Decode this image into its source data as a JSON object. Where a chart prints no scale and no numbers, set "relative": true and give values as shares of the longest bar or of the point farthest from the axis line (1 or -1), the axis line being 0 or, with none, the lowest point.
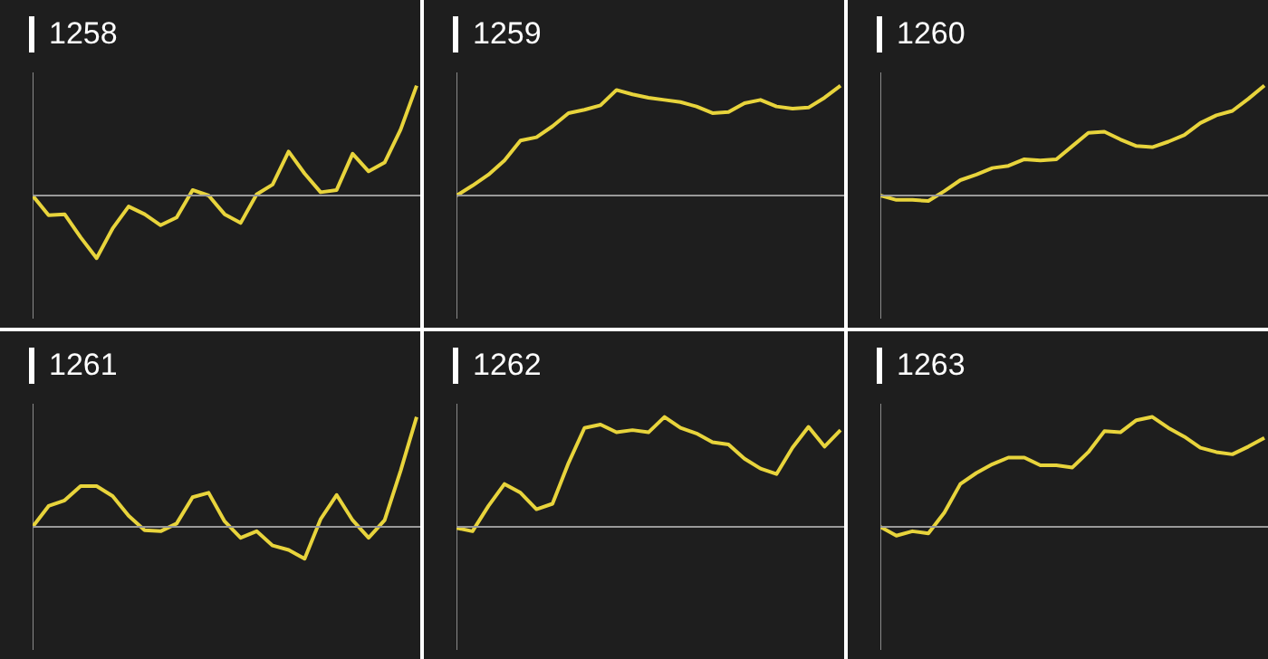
{
  "chart_data": [
    {
      "type": "line",
      "title": "1258",
      "relative": true,
      "categories": [
        null,
        null,
        null,
        null,
        null,
        null,
        null,
        null,
        null,
        null,
        null,
        null,
        null,
        null,
        null,
        null,
        null,
        null,
        null,
        null,
        null,
        null,
        null,
        null,
        null
      ],
      "series": [
        {
          "color": "#e8d43c",
          "values": [
            0,
            -0.18,
            -0.17,
            -0.38,
            -0.57,
            -0.3,
            -0.1,
            -0.17,
            -0.27,
            -0.2,
            0.05,
            0.0,
            -0.17,
            -0.25,
            0.01,
            0.1,
            0.4,
            0.2,
            0.03,
            0.05,
            0.38,
            0.22,
            0.3,
            0.6,
            1
          ]
        }
      ]
    },
    {
      "type": "line",
      "title": "1259",
      "relative": true,
      "categories": [
        null,
        null,
        null,
        null,
        null,
        null,
        null,
        null,
        null,
        null,
        null,
        null,
        null,
        null,
        null,
        null,
        null,
        null,
        null,
        null,
        null,
        null,
        null,
        null,
        null
      ],
      "series": [
        {
          "color": "#e8d43c",
          "values": [
            0,
            0.09,
            0.19,
            0.32,
            0.5,
            0.53,
            0.63,
            0.75,
            0.78,
            0.82,
            0.96,
            0.92,
            0.89,
            0.87,
            0.85,
            0.81,
            0.75,
            0.76,
            0.84,
            0.87,
            0.81,
            0.79,
            0.8,
            0.89,
            1
          ]
        }
      ]
    },
    {
      "type": "line",
      "title": "1260",
      "relative": true,
      "categories": [
        null,
        null,
        null,
        null,
        null,
        null,
        null,
        null,
        null,
        null,
        null,
        null,
        null,
        null,
        null,
        null,
        null,
        null,
        null,
        null,
        null,
        null,
        null,
        null,
        null
      ],
      "series": [
        {
          "color": "#e8d43c",
          "values": [
            0,
            -0.04,
            -0.04,
            -0.05,
            0.04,
            0.14,
            0.19,
            0.25,
            0.27,
            0.33,
            0.32,
            0.33,
            0.45,
            0.57,
            0.58,
            0.51,
            0.45,
            0.44,
            0.49,
            0.55,
            0.66,
            0.73,
            0.77,
            0.88,
            1
          ]
        }
      ]
    },
    {
      "type": "line",
      "title": "1261",
      "relative": true,
      "categories": [
        null,
        null,
        null,
        null,
        null,
        null,
        null,
        null,
        null,
        null,
        null,
        null,
        null,
        null,
        null,
        null,
        null,
        null,
        null,
        null,
        null,
        null,
        null,
        null,
        null
      ],
      "series": [
        {
          "color": "#e8d43c",
          "values": [
            0,
            0.19,
            0.24,
            0.37,
            0.37,
            0.28,
            0.1,
            -0.03,
            -0.04,
            0.03,
            0.27,
            0.31,
            0.05,
            -0.1,
            -0.04,
            -0.17,
            -0.21,
            -0.29,
            0.07,
            0.29,
            0.06,
            -0.1,
            0.06,
            0.51,
            1
          ]
        }
      ]
    },
    {
      "type": "line",
      "title": "1262",
      "relative": true,
      "categories": [
        null,
        null,
        null,
        null,
        null,
        null,
        null,
        null,
        null,
        null,
        null,
        null,
        null,
        null,
        null,
        null,
        null,
        null,
        null,
        null,
        null,
        null,
        null,
        null,
        null
      ],
      "series": [
        {
          "color": "#e8d43c",
          "values": [
            -0.01,
            -0.04,
            0.19,
            0.39,
            0.31,
            0.16,
            0.21,
            0.58,
            0.9,
            0.93,
            0.86,
            0.88,
            0.86,
            1,
            0.9,
            0.85,
            0.77,
            0.75,
            0.62,
            0.53,
            0.48,
            0.72,
            0.91,
            0.73,
            0.88
          ]
        }
      ]
    },
    {
      "type": "line",
      "title": "1263",
      "relative": true,
      "categories": [
        null,
        null,
        null,
        null,
        null,
        null,
        null,
        null,
        null,
        null,
        null,
        null,
        null,
        null,
        null,
        null,
        null,
        null,
        null,
        null,
        null,
        null,
        null,
        null,
        null
      ],
      "series": [
        {
          "color": "#e8d43c",
          "values": [
            0,
            -0.08,
            -0.04,
            -0.06,
            0.13,
            0.39,
            0.49,
            0.57,
            0.63,
            0.63,
            0.56,
            0.56,
            0.54,
            0.68,
            0.87,
            0.86,
            0.97,
            1,
            0.9,
            0.82,
            0.72,
            0.68,
            0.66,
            0.73,
            0.81
          ]
        }
      ]
    }
  ]
}
